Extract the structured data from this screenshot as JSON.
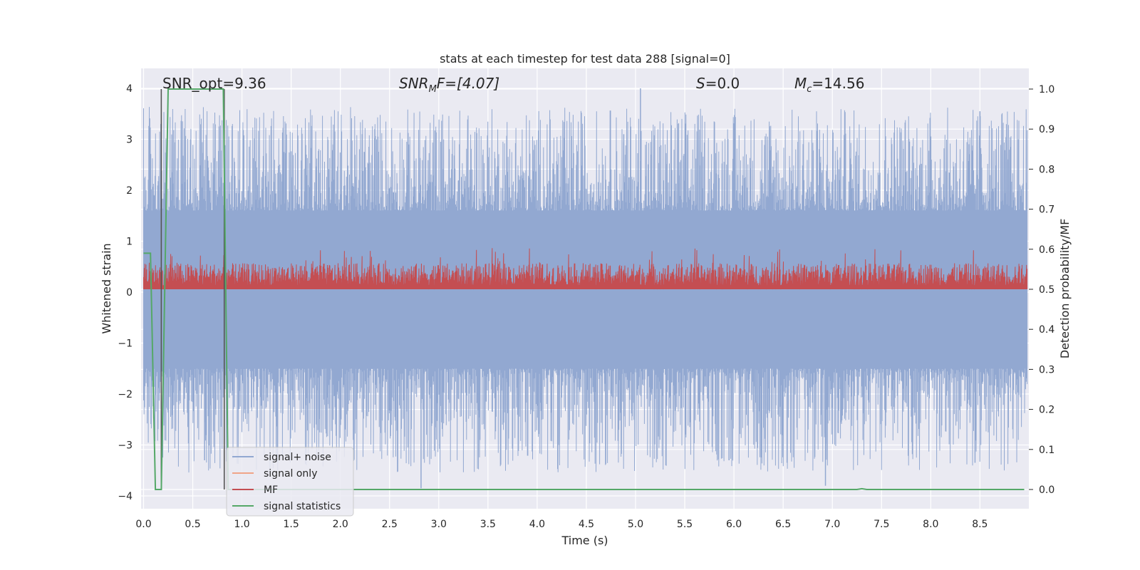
{
  "chart_data": {
    "type": "line",
    "title": "stats at each timestep for test data 288 [signal=0]",
    "xlabel": "Time (s)",
    "ylabel_left": "Whitened strain",
    "ylabel_right": "Detection probability/MF",
    "xlim": [
      0.0,
      9.0
    ],
    "ylim_left": [
      -4.25,
      4.4
    ],
    "ylim_right": [
      -0.05,
      1.035
    ],
    "x_ticks": [
      "0.0",
      "0.5",
      "1.0",
      "1.5",
      "2.0",
      "2.5",
      "3.0",
      "3.5",
      "4.0",
      "4.5",
      "5.0",
      "5.5",
      "6.0",
      "6.5",
      "7.0",
      "7.5",
      "8.0",
      "8.5"
    ],
    "y_ticks_left": [
      "4",
      "3",
      "2",
      "1",
      "0",
      "−1",
      "−2",
      "−3",
      "−4"
    ],
    "y_ticks_right": [
      "1.0",
      "0.9",
      "0.8",
      "0.7",
      "0.6",
      "0.5",
      "0.4",
      "0.3",
      "0.2",
      "0.1",
      "0.0"
    ],
    "grid": true,
    "annotations": {
      "snr_opt": "SNR_opt=9.36",
      "snr_mf_base": "SNR",
      "snr_mf_sub": "M",
      "snr_mf_rest": "F=[4.07]",
      "s_var": "S",
      "s_rest": "=0.0",
      "mc_var": "M",
      "mc_sub": "c",
      "mc_rest": "=14.56"
    },
    "vlines_x": [
      0.18,
      0.82
    ],
    "series": [
      {
        "name": "signal+ noise",
        "color": "#92a8d1",
        "description_envelope": {
          "core_low": -1.5,
          "core_high": 1.6,
          "peak_high": 4.0,
          "peak_low": -3.9
        }
      },
      {
        "name": "signal only",
        "color": "#f0a487",
        "values": []
      },
      {
        "name": "MF",
        "color": "#c44e52",
        "description_envelope": {
          "base": 0.5,
          "max": 0.59
        }
      },
      {
        "name": "signal statistics",
        "color": "#55a868",
        "x": [
          0.0,
          0.07,
          0.12,
          0.18,
          0.25,
          0.81,
          0.86,
          7.25,
          7.3,
          7.35,
          8.95
        ],
        "values": [
          0.59,
          0.59,
          0.0,
          0.0,
          1.0,
          1.0,
          0.0,
          0.0,
          0.002,
          0.0,
          0.0
        ]
      }
    ],
    "legend_position": "lower-left"
  }
}
